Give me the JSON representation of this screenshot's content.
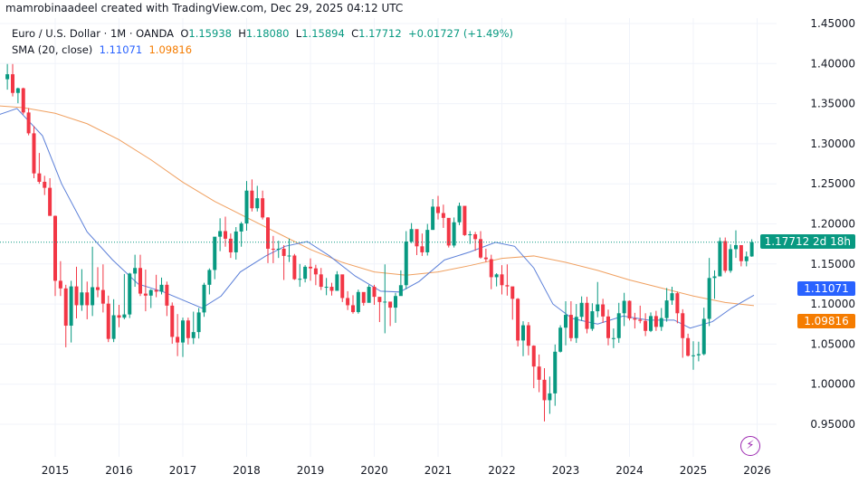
{
  "header": {
    "credit": "mamrobinaadeel created with TradingView.com, Dec 29, 2025 04:12 UTC"
  },
  "legend": {
    "symbol": "Euro / U.S. Dollar · 1M · OANDA",
    "open_label": "O",
    "open": "1.15938",
    "high_label": "H",
    "high": "1.18080",
    "low_label": "L",
    "low": "1.15894",
    "close_label": "C",
    "close": "1.17712",
    "change": "+0.01727 (+1.49%)",
    "indicator": "SMA (20, close)",
    "sma_value": "1.11071",
    "sma_smoothing_value": "1.09816"
  },
  "price_tags": {
    "last": "1.17712",
    "countdown": "2d 18h",
    "sma": "1.11071",
    "sma_smoothing": "1.09816"
  },
  "colors": {
    "up": "#089981",
    "down": "#f23645",
    "sma": "#2962ff",
    "sma_smoothing": "#f57c00"
  },
  "chart_data": {
    "type": "candlestick",
    "ylim": [
      0.93,
      1.46
    ],
    "yticks": [
      "1.45000",
      "1.40000",
      "1.35000",
      "1.30000",
      "1.25000",
      "1.20000",
      "1.15000",
      "1.10000",
      "1.05000",
      "1.00000",
      "0.95000"
    ],
    "xticks": [
      "2015",
      "2016",
      "2017",
      "2018",
      "2019",
      "2020",
      "2021",
      "2022",
      "2023",
      "2024",
      "2025",
      "2026"
    ],
    "start": "2014-04",
    "first_open": 1.3805,
    "close": [
      1.3867,
      1.3634,
      1.3692,
      1.339,
      1.313,
      1.263,
      1.2525,
      1.245,
      1.21,
      1.129,
      1.1195,
      1.073,
      1.122,
      1.0985,
      1.1145,
      1.0985,
      1.121,
      1.1175,
      1.1005,
      1.0565,
      1.086,
      1.083,
      1.087,
      1.138,
      1.145,
      1.113,
      1.1105,
      1.1175,
      1.1155,
      1.124,
      1.098,
      1.059,
      1.052,
      1.0795,
      1.0575,
      1.065,
      1.0895,
      1.124,
      1.1425,
      1.184,
      1.191,
      1.1815,
      1.1645,
      1.1905,
      1.2005,
      1.2415,
      1.2195,
      1.232,
      1.208,
      1.169,
      1.1685,
      1.169,
      1.16,
      1.1605,
      1.131,
      1.1315,
      1.1465,
      1.1445,
      1.137,
      1.1215,
      1.1215,
      1.1165,
      1.137,
      1.1075,
      1.0985,
      1.09,
      1.115,
      1.1015,
      1.1215,
      1.109,
      1.1025,
      1.103,
      1.0955,
      1.11,
      1.1235,
      1.178,
      1.1935,
      1.172,
      1.1645,
      1.1925,
      1.2215,
      1.2135,
      1.2075,
      1.173,
      1.202,
      1.2225,
      1.186,
      1.187,
      1.181,
      1.158,
      1.156,
      1.1335,
      1.137,
      1.1235,
      1.122,
      1.1065,
      1.0545,
      1.0735,
      1.048,
      1.022,
      1.0055,
      0.98,
      0.9885,
      1.0405,
      1.0705,
      1.0865,
      1.0575,
      1.084,
      1.1015,
      1.069,
      1.091,
      1.0995,
      1.0845,
      1.0575,
      1.0575,
      1.0885,
      1.104,
      1.082,
      1.0805,
      1.079,
      1.0665,
      1.085,
      1.0715,
      1.0825,
      1.1045,
      1.1135,
      1.0885,
      1.0575,
      1.0355,
      1.036,
      1.0375,
      1.0815,
      1.1325,
      1.1345,
      1.1785,
      1.1415,
      1.1685,
      1.1735,
      1.1535,
      1.15938,
      1.17712
    ],
    "high": [
      1.3995,
      1.3995,
      1.37,
      1.37,
      1.3445,
      1.322,
      1.2885,
      1.26,
      1.257,
      1.2105,
      1.1535,
      1.124,
      1.129,
      1.1465,
      1.1435,
      1.128,
      1.1715,
      1.146,
      1.1495,
      1.1105,
      1.106,
      1.099,
      1.1375,
      1.139,
      1.1615,
      1.1615,
      1.143,
      1.1185,
      1.1365,
      1.133,
      1.128,
      1.102,
      1.0875,
      1.083,
      1.083,
      1.0905,
      1.095,
      1.1265,
      1.1445,
      1.183,
      1.207,
      1.209,
      1.188,
      1.196,
      1.2025,
      1.2535,
      1.2555,
      1.2475,
      1.2415,
      1.2085,
      1.185,
      1.179,
      1.1735,
      1.1815,
      1.1625,
      1.15,
      1.1485,
      1.157,
      1.149,
      1.145,
      1.1325,
      1.1265,
      1.141,
      1.1285,
      1.116,
      1.111,
      1.118,
      1.1095,
      1.124,
      1.124,
      1.105,
      1.1495,
      1.102,
      1.114,
      1.142,
      1.191,
      1.201,
      1.187,
      1.188,
      1.2,
      1.231,
      1.235,
      1.224,
      1.199,
      1.208,
      1.2265,
      1.222,
      1.191,
      1.19,
      1.191,
      1.169,
      1.1615,
      1.1385,
      1.1485,
      1.1495,
      1.1185,
      1.1075,
      1.0785,
      1.0775,
      1.0485,
      1.037,
      1.02,
      1.0095,
      1.0495,
      1.0735,
      1.1035,
      1.1035,
      1.1,
      1.1095,
      1.109,
      1.101,
      1.1275,
      1.1065,
      1.093,
      1.0695,
      1.1015,
      1.114,
      1.1045,
      1.089,
      1.098,
      1.0885,
      1.0895,
      1.0915,
      1.095,
      1.12,
      1.1215,
      1.1155,
      1.0935,
      1.063,
      1.0535,
      1.053,
      1.0955,
      1.1575,
      1.142,
      1.183,
      1.183,
      1.1745,
      1.192,
      1.173,
      1.1655,
      1.1808
    ],
    "low": [
      1.3675,
      1.359,
      1.3505,
      1.3365,
      1.3105,
      1.257,
      1.25,
      1.236,
      1.21,
      1.11,
      1.11,
      1.046,
      1.052,
      1.082,
      1.0915,
      1.081,
      1.085,
      1.1085,
      1.0895,
      1.0525,
      1.0525,
      1.071,
      1.081,
      1.0825,
      1.1215,
      1.11,
      1.091,
      1.095,
      1.1085,
      1.112,
      1.085,
      1.0505,
      1.035,
      1.034,
      1.0495,
      1.05,
      1.057,
      1.084,
      1.112,
      1.131,
      1.166,
      1.1715,
      1.1575,
      1.1555,
      1.1715,
      1.1915,
      1.2155,
      1.2155,
      1.2055,
      1.151,
      1.151,
      1.1575,
      1.13,
      1.1525,
      1.13,
      1.1215,
      1.127,
      1.129,
      1.1235,
      1.1175,
      1.111,
      1.1105,
      1.118,
      1.1025,
      1.0925,
      1.088,
      1.088,
      1.098,
      1.1025,
      1.099,
      1.0775,
      1.0635,
      1.0725,
      1.0765,
      1.117,
      1.1185,
      1.176,
      1.161,
      1.16,
      1.1605,
      1.1925,
      1.2055,
      1.195,
      1.1705,
      1.1705,
      1.1985,
      1.185,
      1.175,
      1.1665,
      1.1565,
      1.1525,
      1.1185,
      1.122,
      1.112,
      1.1105,
      1.0805,
      1.047,
      1.035,
      1.036,
      0.995,
      0.99,
      0.9535,
      0.963,
      0.973,
      1.0395,
      1.0485,
      1.0535,
      1.0515,
      1.079,
      1.0635,
      1.0665,
      1.0835,
      1.0765,
      1.0485,
      1.045,
      1.0515,
      1.0725,
      1.0795,
      1.0695,
      1.076,
      1.06,
      1.065,
      1.0665,
      1.0665,
      1.078,
      1.099,
      1.076,
      1.033,
      1.0345,
      1.018,
      1.0285,
      1.036,
      1.0725,
      1.1065,
      1.1375,
      1.139,
      1.139,
      1.1575,
      1.147,
      1.147,
      1.15894
    ],
    "sma_line": [
      [
        2014.0,
        1.333
      ],
      [
        2014.4,
        1.344
      ],
      [
        2014.8,
        1.31
      ],
      [
        2015.1,
        1.25
      ],
      [
        2015.5,
        1.19
      ],
      [
        2015.9,
        1.155
      ],
      [
        2016.3,
        1.125
      ],
      [
        2016.7,
        1.115
      ],
      [
        2017.0,
        1.105
      ],
      [
        2017.3,
        1.095
      ],
      [
        2017.6,
        1.11
      ],
      [
        2017.9,
        1.14
      ],
      [
        2018.3,
        1.16
      ],
      [
        2018.6,
        1.172
      ],
      [
        2018.95,
        1.178
      ],
      [
        2019.3,
        1.16
      ],
      [
        2019.7,
        1.135
      ],
      [
        2020.1,
        1.116
      ],
      [
        2020.4,
        1.115
      ],
      [
        2020.7,
        1.128
      ],
      [
        2021.1,
        1.155
      ],
      [
        2021.5,
        1.165
      ],
      [
        2021.9,
        1.177
      ],
      [
        2022.2,
        1.172
      ],
      [
        2022.5,
        1.145
      ],
      [
        2022.8,
        1.1
      ],
      [
        2023.1,
        1.082
      ],
      [
        2023.5,
        1.075
      ],
      [
        2023.9,
        1.085
      ],
      [
        2024.3,
        1.08
      ],
      [
        2024.7,
        1.08
      ],
      [
        2024.95,
        1.07
      ],
      [
        2025.3,
        1.078
      ],
      [
        2025.6,
        1.095
      ],
      [
        2025.95,
        1.111
      ]
    ],
    "sma_smoothing_line": [
      [
        2014.0,
        1.348
      ],
      [
        2014.5,
        1.345
      ],
      [
        2015.0,
        1.338
      ],
      [
        2015.5,
        1.325
      ],
      [
        2016.0,
        1.305
      ],
      [
        2016.5,
        1.28
      ],
      [
        2017.0,
        1.252
      ],
      [
        2017.5,
        1.228
      ],
      [
        2018.0,
        1.208
      ],
      [
        2018.5,
        1.188
      ],
      [
        2019.0,
        1.168
      ],
      [
        2019.5,
        1.152
      ],
      [
        2020.0,
        1.14
      ],
      [
        2020.5,
        1.136
      ],
      [
        2021.0,
        1.14
      ],
      [
        2021.5,
        1.148
      ],
      [
        2022.0,
        1.157
      ],
      [
        2022.5,
        1.16
      ],
      [
        2023.0,
        1.152
      ],
      [
        2023.5,
        1.142
      ],
      [
        2024.0,
        1.13
      ],
      [
        2024.5,
        1.12
      ],
      [
        2025.0,
        1.11
      ],
      [
        2025.5,
        1.102
      ],
      [
        2025.95,
        1.098
      ]
    ]
  }
}
